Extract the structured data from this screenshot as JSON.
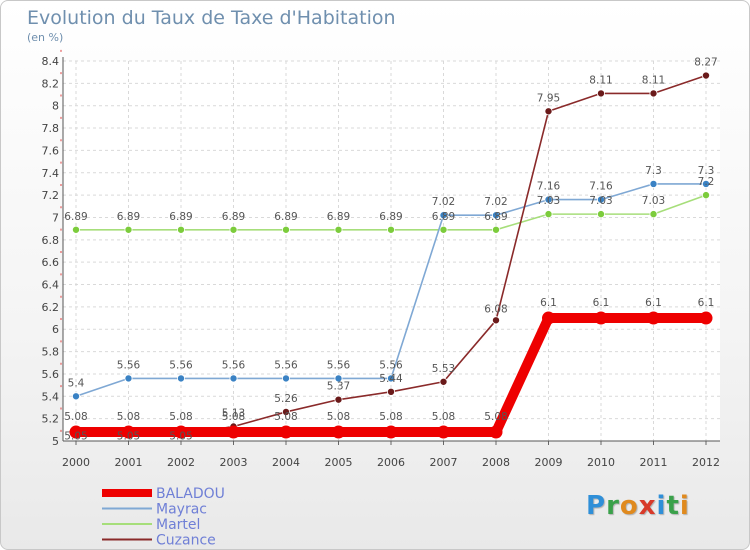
{
  "header": {
    "title": "Evolution du Taux de Taxe d'Habitation",
    "subtitle": "(en %)"
  },
  "logo": {
    "letters": [
      "P",
      "r",
      "o",
      "x",
      "i",
      "t",
      "i"
    ],
    "colors": [
      "#2f8fd8",
      "#3aa14a",
      "#e08a1e",
      "#d83a2a",
      "#2f8fd8",
      "#3aa14a",
      "#e08a1e"
    ]
  },
  "chart_data": {
    "type": "line",
    "title": "Evolution du Taux de Taxe d'Habitation",
    "subtitle": "(en %)",
    "xlabel": "",
    "ylabel": "",
    "ylim": [
      5,
      8.4
    ],
    "yticks": [
      5,
      5.2,
      5.4,
      5.6,
      5.8,
      6,
      6.2,
      6.4,
      6.6,
      6.8,
      7,
      7.2,
      7.4,
      7.6,
      7.8,
      8,
      8.2,
      8.4
    ],
    "categories": [
      "2000",
      "2001",
      "2002",
      "2003",
      "2004",
      "2005",
      "2006",
      "2007",
      "2008",
      "2009",
      "2010",
      "2011",
      "2012"
    ],
    "grid": true,
    "legend_position": "bottom-left",
    "series": [
      {
        "name": "BALADOU",
        "color": "#ee0000",
        "thick": true,
        "values": [
          5.08,
          5.08,
          5.08,
          5.08,
          5.08,
          5.08,
          5.08,
          5.08,
          5.08,
          6.1,
          6.1,
          6.1,
          6.1
        ],
        "labels": [
          "5.08",
          "5.08",
          "5.08",
          "5.08",
          "5.08",
          "5.08",
          "5.08",
          "5.08",
          "5.08",
          "6.1",
          "6.1",
          "6.1",
          "6.1"
        ]
      },
      {
        "name": "Mayrac",
        "color": "#7fa8d4",
        "marker": "#3a82c4",
        "values": [
          5.4,
          5.56,
          5.56,
          5.56,
          5.56,
          5.56,
          5.56,
          7.02,
          7.02,
          7.16,
          7.16,
          7.3,
          7.3
        ],
        "labels": [
          "5.4",
          "5.56",
          "5.56",
          "5.56",
          "5.56",
          "5.56",
          "5.56",
          "7.02",
          "7.02",
          "7.16",
          "7.16",
          "7.3",
          "7.3"
        ]
      },
      {
        "name": "Martel",
        "color": "#a6de7a",
        "marker": "#7ccc3c",
        "values": [
          6.89,
          6.89,
          6.89,
          6.89,
          6.89,
          6.89,
          6.89,
          6.89,
          6.89,
          7.03,
          7.03,
          7.03,
          7.2
        ],
        "labels": [
          "6.89",
          "6.89",
          "6.89",
          "6.89",
          "6.89",
          "6.89",
          "6.89",
          "6.89",
          "6.89",
          "7.03",
          "7.03",
          "7.03",
          "7.2"
        ]
      },
      {
        "name": "Cuzance",
        "color": "#8a2a2a",
        "marker": "#6a1a1a",
        "values": [
          5.05,
          5.05,
          5.05,
          5.13,
          5.26,
          5.37,
          5.44,
          5.53,
          6.08,
          7.95,
          8.11,
          8.11,
          8.27
        ],
        "labels": [
          "5.05",
          "5.05",
          "5.05",
          "5.13",
          "5.26",
          "5.37",
          "5.44",
          "5.53",
          "6.08",
          "7.95",
          "8.11",
          "8.11",
          "8.27"
        ]
      }
    ]
  }
}
